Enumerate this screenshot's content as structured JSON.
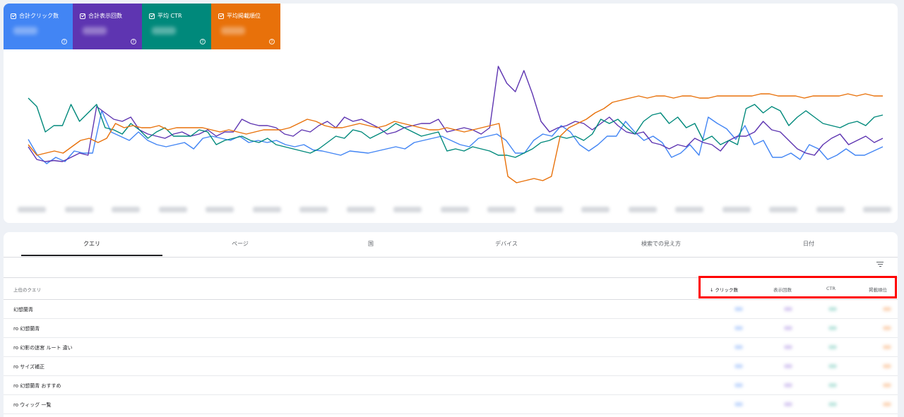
{
  "metrics": [
    {
      "label": "合計クリック数",
      "color": "#4285f4"
    },
    {
      "label": "合計表示回数",
      "color": "#5e35b1"
    },
    {
      "label": "平均 CTR",
      "color": "#00897b"
    },
    {
      "label": "平均掲載順位",
      "color": "#e8710a"
    }
  ],
  "help_glyph": "?",
  "tabs": [
    "クエリ",
    "ページ",
    "国",
    "デバイス",
    "検索での見え方",
    "日付"
  ],
  "active_tab": "クエリ",
  "table": {
    "query_header": "上位のクエリ",
    "columns": [
      "↓ クリック数",
      "表示回数",
      "CTR",
      "掲載順位"
    ],
    "rows": [
      "幻想蘭青",
      "ro 幻想蘭青",
      "ro 幻影の迷宮 ルート 違い",
      "ro サイズ補正",
      "ro 幻想蘭青 おすすめ",
      "ro ウィッグ 一覧"
    ]
  },
  "chart_data": {
    "type": "line",
    "series": [
      {
        "color": "#4285f4",
        "values": [
          45,
          30,
          22,
          28,
          24,
          34,
          32,
          32,
          72,
          52,
          48,
          44,
          52,
          44,
          40,
          38,
          40,
          42,
          36,
          46,
          48,
          46,
          44,
          48,
          42,
          44,
          42,
          44,
          40,
          38,
          40,
          35,
          34,
          32,
          30,
          34,
          33,
          32,
          34,
          36,
          38,
          36,
          42,
          44,
          46,
          48,
          44,
          40,
          38,
          46,
          48,
          50,
          44,
          32,
          32,
          44,
          50,
          48,
          58,
          52,
          40,
          34,
          40,
          48,
          48,
          62,
          52,
          44,
          48,
          42,
          28,
          32,
          40,
          30,
          66,
          60,
          55,
          45,
          58,
          40,
          44,
          28,
          28,
          32,
          26,
          40,
          36,
          26,
          30,
          36,
          30,
          30,
          34,
          38
        ]
      },
      {
        "color": "#5e35b1",
        "values": [
          38,
          26,
          24,
          25,
          24,
          28,
          32,
          30,
          76,
          70,
          64,
          62,
          66,
          54,
          50,
          48,
          46,
          50,
          52,
          48,
          50,
          54,
          48,
          52,
          52,
          64,
          60,
          58,
          58,
          56,
          50,
          48,
          54,
          52,
          58,
          62,
          56,
          66,
          62,
          64,
          60,
          56,
          50,
          52,
          56,
          58,
          60,
          60,
          64,
          52,
          54,
          56,
          54,
          50,
          56,
          114,
          98,
          90,
          110,
          88,
          62,
          52,
          56,
          58,
          62,
          60,
          54,
          60,
          66,
          58,
          52,
          50,
          52,
          42,
          40,
          36,
          40,
          38,
          46,
          42,
          40,
          34,
          44,
          48,
          48,
          52,
          62,
          54,
          52,
          44,
          36,
          32,
          30,
          40,
          46,
          50,
          40,
          44,
          48,
          42,
          46
        ]
      },
      {
        "color": "#00897b",
        "values": [
          84,
          76,
          52,
          58,
          58,
          78,
          62,
          70,
          78,
          56,
          54,
          50,
          60,
          54,
          46,
          52,
          56,
          48,
          48,
          48,
          54,
          52,
          40,
          44,
          46,
          48,
          44,
          42,
          46,
          40,
          38,
          36,
          34,
          32,
          36,
          42,
          48,
          46,
          54,
          52,
          46,
          50,
          54,
          60,
          56,
          52,
          48,
          50,
          52,
          34,
          36,
          34,
          38,
          36,
          34,
          30,
          30,
          28,
          32,
          36,
          42,
          44,
          48,
          46,
          48,
          44,
          50,
          64,
          60,
          64,
          56,
          50,
          62,
          68,
          70,
          60,
          66,
          56,
          60,
          44,
          48,
          40,
          44,
          40,
          74,
          78,
          70,
          76,
          72,
          58,
          66,
          72,
          66,
          60,
          58,
          56,
          60,
          62,
          58,
          66,
          68
        ]
      },
      {
        "color": "#e8710a",
        "values": [
          40,
          30,
          32,
          34,
          32,
          38,
          44,
          46,
          42,
          46,
          60,
          56,
          58,
          56,
          56,
          58,
          54,
          56,
          56,
          56,
          56,
          54,
          52,
          54,
          52,
          50,
          52,
          54,
          54,
          54,
          56,
          60,
          64,
          62,
          58,
          56,
          56,
          58,
          60,
          58,
          56,
          58,
          62,
          60,
          58,
          56,
          54,
          54,
          56,
          54,
          52,
          54,
          56,
          58,
          60,
          10,
          4,
          6,
          8,
          6,
          10,
          48,
          56,
          60,
          64,
          70,
          74,
          80,
          82,
          84,
          86,
          84,
          86,
          86,
          84,
          86,
          86,
          84,
          84,
          86,
          86,
          86,
          86,
          86,
          88,
          88,
          86,
          86,
          86,
          84,
          86,
          86,
          86,
          86,
          88,
          86,
          88,
          86,
          86
        ]
      }
    ]
  }
}
